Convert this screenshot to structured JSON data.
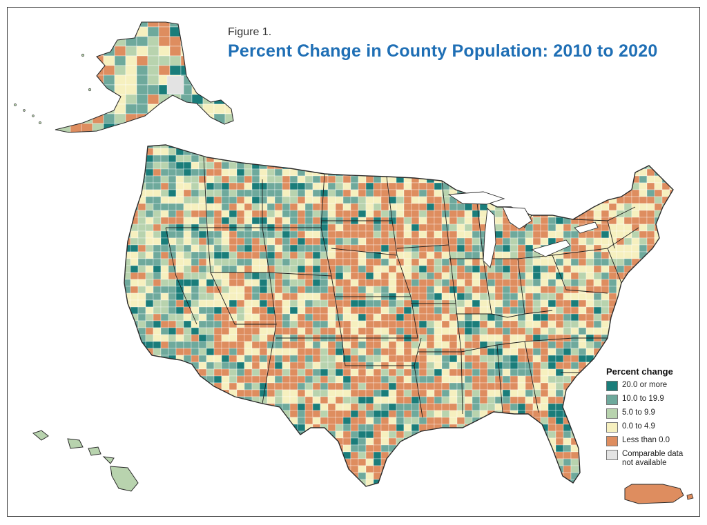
{
  "figure_label": "Figure 1.",
  "title": "Percent Change in County Population: 2010 to 2020",
  "legend": {
    "title": "Percent change",
    "items": [
      {
        "label": "20.0 or more",
        "color": "#1a7d7a"
      },
      {
        "label": "10.0 to 19.9",
        "color": "#6ea99c"
      },
      {
        "label": "5.0 to 9.9",
        "color": "#b8d3ae"
      },
      {
        "label": "0.0 to 4.9",
        "color": "#f6f0bf"
      },
      {
        "label": "Less than 0.0",
        "color": "#de8d5f"
      },
      {
        "label": "Comparable data not available",
        "color": "#e3e3e3"
      }
    ]
  },
  "colors": {
    "border": "#2a2a2a",
    "title": "#1f6fb5"
  }
}
